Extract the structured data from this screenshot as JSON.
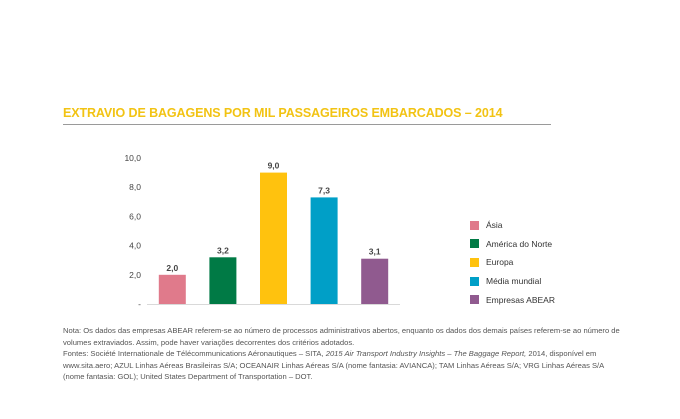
{
  "chart_data": {
    "type": "bar",
    "title": "EXTRAVIO DE BAGAGENS POR MIL PASSAGEIROS EMBARCADOS – 2014",
    "categories": [
      "Ásia",
      "América do Norte",
      "Europa",
      "Média mundial",
      "Empresas ABEAR"
    ],
    "values": [
      2.0,
      3.2,
      9.0,
      7.3,
      3.1
    ],
    "value_labels": [
      "2,0",
      "3,2",
      "9,0",
      "7,3",
      "3,1"
    ],
    "colors": [
      "#e07a8b",
      "#007a45",
      "#ffc20e",
      "#009fc7",
      "#905a8f"
    ],
    "yticks": [
      {
        "value": 0,
        "label": "-"
      },
      {
        "value": 2,
        "label": "2,0"
      },
      {
        "value": 4,
        "label": "4,0"
      },
      {
        "value": 6,
        "label": "6,0"
      },
      {
        "value": 8,
        "label": "8,0"
      },
      {
        "value": 10,
        "label": "10,0"
      }
    ],
    "ylim": [
      0,
      10
    ],
    "grid": false,
    "legend_position": "right",
    "title_color": "#f2c313"
  },
  "notes": {
    "line1": "Nota: Os dados das empresas ABEAR referem-se ao número de processos administrativos abertos, enquanto os dados dos demais países referem-se ao número de volumes extraviados. Assim, pode haver variações decorrentes dos critérios adotados.",
    "line2_prefix": "Fontes: Société Internationale de Télécommunications Aéronautiques – SITA,",
    "line2_italic": "2015 Air Transport Industry Insights – The Baggage Report,",
    "line2_suffix": "2014, disponível em www.sita.aero; AZUL Linhas Aéreas Brasileiras S/A; OCEANAIR Linhas Aéreas S/A (nome fantasia: AVIANCA); TAM Linhas Aéreas S/A; VRG Linhas Aéreas S/A (nome fantasia: GOL); United States Department of Transportation – DOT."
  }
}
